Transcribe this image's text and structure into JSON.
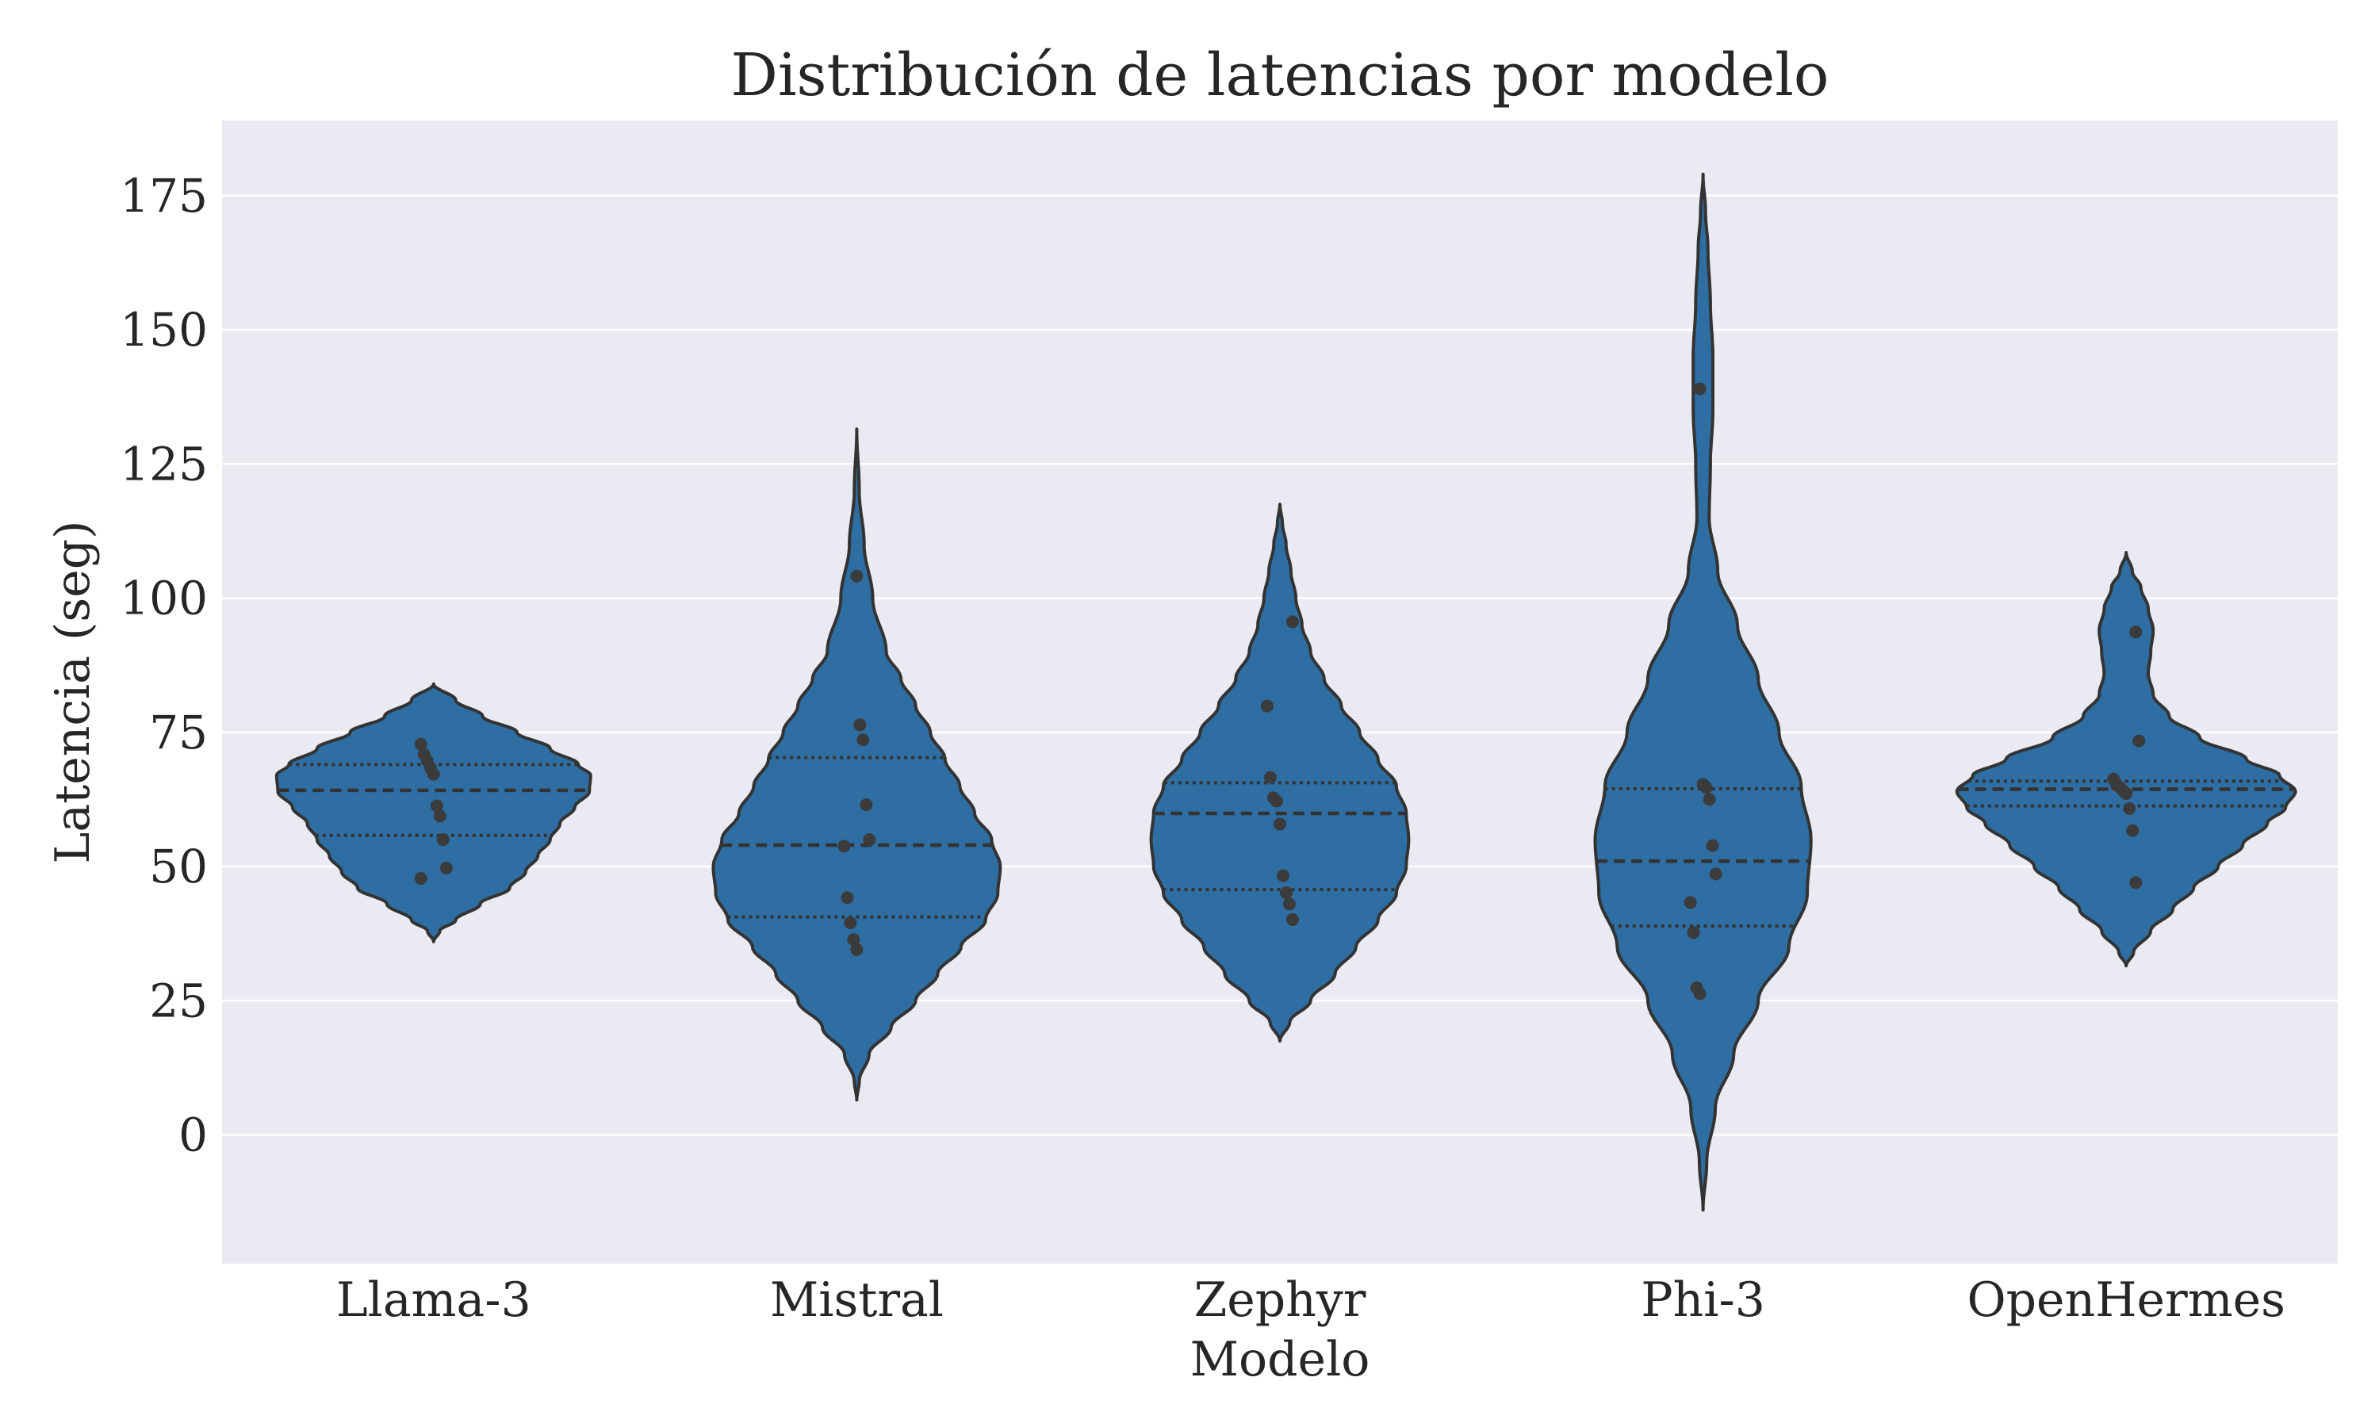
{
  "chart_data": {
    "type": "violin",
    "title": "Distribución de latencias por modelo",
    "xlabel": "Modelo",
    "ylabel": "Latencia (seg)",
    "ylim": [
      -24,
      189
    ],
    "yticks": [
      0,
      25,
      50,
      75,
      100,
      125,
      150,
      175
    ],
    "grid": true,
    "colors": {
      "background": "#eaeaf2",
      "violin_fill": "#2e6ea3",
      "outline": "#333333",
      "grid": "#ffffff"
    },
    "categories": [
      "Llama-3",
      "Mistral",
      "Zephyr",
      "Phi-3",
      "OpenHermes"
    ],
    "series": [
      {
        "category": "Llama-3",
        "range": [
          36,
          84
        ],
        "quartiles": [
          55.8,
          64.2,
          69.0
        ],
        "points": [
          72.8,
          70.9,
          69.7,
          68.4,
          67.2,
          61.3,
          59.4,
          55.0,
          49.7,
          47.8
        ],
        "density": [
          [
            36,
            0.0
          ],
          [
            38,
            0.05
          ],
          [
            40,
            0.18
          ],
          [
            43,
            0.38
          ],
          [
            46,
            0.62
          ],
          [
            49,
            0.75
          ],
          [
            52,
            0.85
          ],
          [
            55,
            0.95
          ],
          [
            58,
            1.03
          ],
          [
            61,
            1.15
          ],
          [
            64,
            1.27
          ],
          [
            67,
            1.28
          ],
          [
            69,
            1.18
          ],
          [
            72,
            0.95
          ],
          [
            75,
            0.68
          ],
          [
            78,
            0.4
          ],
          [
            81,
            0.18
          ],
          [
            84,
            0.0
          ]
        ]
      },
      {
        "category": "Mistral",
        "range": [
          6.5,
          131.5
        ],
        "quartiles": [
          40.6,
          54.0,
          70.3
        ],
        "points": [
          104.1,
          76.4,
          73.6,
          61.5,
          55.0,
          53.8,
          44.2,
          39.5,
          36.4,
          34.5
        ],
        "density": [
          [
            6.5,
            0.0
          ],
          [
            10,
            0.02
          ],
          [
            15,
            0.1
          ],
          [
            20,
            0.28
          ],
          [
            25,
            0.48
          ],
          [
            30,
            0.66
          ],
          [
            35,
            0.85
          ],
          [
            40,
            1.05
          ],
          [
            45,
            1.15
          ],
          [
            50,
            1.17
          ],
          [
            55,
            1.1
          ],
          [
            60,
            0.96
          ],
          [
            65,
            0.84
          ],
          [
            70,
            0.72
          ],
          [
            75,
            0.6
          ],
          [
            80,
            0.48
          ],
          [
            85,
            0.36
          ],
          [
            90,
            0.24
          ],
          [
            100,
            0.13
          ],
          [
            110,
            0.06
          ],
          [
            120,
            0.02
          ],
          [
            131.5,
            0.0
          ]
        ]
      },
      {
        "category": "Zephyr",
        "range": [
          17.5,
          117.5
        ],
        "quartiles": [
          45.7,
          59.9,
          65.6
        ],
        "points": [
          95.6,
          79.9,
          66.6,
          62.8,
          62.2,
          57.9,
          48.3,
          45.1,
          43.0,
          40.1
        ],
        "density": [
          [
            17.5,
            0.0
          ],
          [
            21,
            0.08
          ],
          [
            25,
            0.25
          ],
          [
            30,
            0.45
          ],
          [
            35,
            0.62
          ],
          [
            40,
            0.8
          ],
          [
            45,
            0.95
          ],
          [
            50,
            1.03
          ],
          [
            55,
            1.05
          ],
          [
            60,
            1.03
          ],
          [
            65,
            0.95
          ],
          [
            70,
            0.8
          ],
          [
            75,
            0.65
          ],
          [
            80,
            0.5
          ],
          [
            85,
            0.36
          ],
          [
            90,
            0.25
          ],
          [
            95,
            0.18
          ],
          [
            100,
            0.13
          ],
          [
            105,
            0.09
          ],
          [
            110,
            0.05
          ],
          [
            114,
            0.02
          ],
          [
            117.5,
            0.0
          ]
        ]
      },
      {
        "category": "Phi-3",
        "range": [
          -14,
          179
        ],
        "quartiles": [
          38.9,
          51.0,
          64.5
        ],
        "points": [
          139.0,
          65.3,
          64.7,
          62.5,
          53.9,
          48.6,
          43.3,
          37.7,
          27.4,
          26.3
        ],
        "density": [
          [
            -14,
            0.0
          ],
          [
            -5,
            0.03
          ],
          [
            5,
            0.1
          ],
          [
            15,
            0.25
          ],
          [
            25,
            0.45
          ],
          [
            35,
            0.7
          ],
          [
            45,
            0.85
          ],
          [
            55,
            0.88
          ],
          [
            65,
            0.8
          ],
          [
            75,
            0.62
          ],
          [
            85,
            0.45
          ],
          [
            95,
            0.28
          ],
          [
            105,
            0.12
          ],
          [
            115,
            0.05
          ],
          [
            125,
            0.06
          ],
          [
            135,
            0.08
          ],
          [
            145,
            0.08
          ],
          [
            155,
            0.06
          ],
          [
            165,
            0.04
          ],
          [
            172,
            0.02
          ],
          [
            179,
            0.0
          ]
        ]
      },
      {
        "category": "OpenHermes",
        "range": [
          31.5,
          108.5
        ],
        "quartiles": [
          61.3,
          64.4,
          65.9
        ],
        "points": [
          93.7,
          73.4,
          66.3,
          65.2,
          64.8,
          64.1,
          63.6,
          60.8,
          56.7,
          47.0
        ],
        "density": [
          [
            31.5,
            0.0
          ],
          [
            34,
            0.06
          ],
          [
            38,
            0.2
          ],
          [
            42,
            0.38
          ],
          [
            46,
            0.55
          ],
          [
            50,
            0.75
          ],
          [
            54,
            0.95
          ],
          [
            58,
            1.15
          ],
          [
            61,
            1.3
          ],
          [
            64,
            1.38
          ],
          [
            67,
            1.25
          ],
          [
            70,
            0.98
          ],
          [
            74,
            0.6
          ],
          [
            78,
            0.35
          ],
          [
            82,
            0.22
          ],
          [
            86,
            0.18
          ],
          [
            90,
            0.2
          ],
          [
            94,
            0.22
          ],
          [
            98,
            0.18
          ],
          [
            102,
            0.12
          ],
          [
            105,
            0.05
          ],
          [
            108.5,
            0.0
          ]
        ]
      }
    ]
  }
}
